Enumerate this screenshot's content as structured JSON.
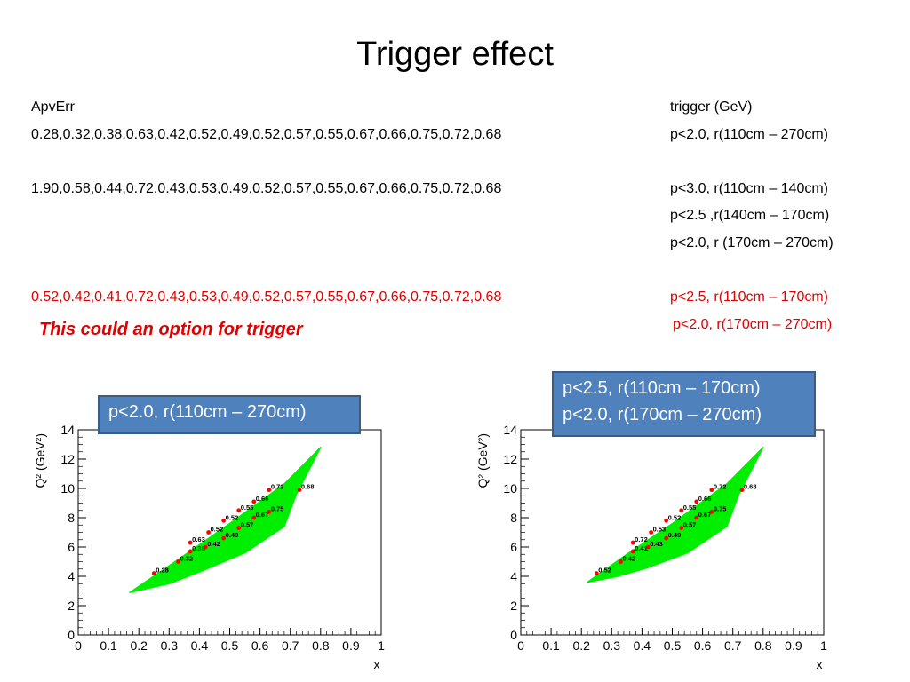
{
  "slide": {
    "title": "Trigger effect",
    "header_left": "ApvErr",
    "header_right": "trigger (GeV)",
    "rows": [
      {
        "values": "0.28,0.32,0.38,0.63,0.42,0.52,0.49,0.52,0.57,0.55,0.67,0.66,0.75,0.72,0.68",
        "triggers": [
          "p<2.0, r(110cm – 270cm)"
        ],
        "color": "#000000"
      },
      {
        "values": "1.90,0.58,0.44,0.72,0.43,0.53,0.49,0.52,0.57,0.55,0.67,0.66,0.75,0.72,0.68",
        "triggers": [
          "p<3.0, r(110cm – 140cm)",
          "p<2.5 ,r(140cm – 170cm)",
          "p<2.0, r (170cm – 270cm)"
        ],
        "color": "#000000"
      },
      {
        "values": "0.52,0.42,0.41,0.72,0.43,0.53,0.49,0.52,0.57,0.55,0.67,0.66,0.75,0.72,0.68",
        "triggers": [
          "p<2.5, r(110cm – 170cm)",
          "p<2.0, r(170cm – 270cm)"
        ],
        "color": "#e00000"
      }
    ],
    "note": "This could an option for trigger",
    "callout_left": [
      "p<2.0, r(110cm – 270cm)"
    ],
    "callout_right": [
      "p<2.5, r(110cm – 170cm)",
      "p<2.0, r(170cm – 270cm)"
    ],
    "colors": {
      "accent_red": "#e00000",
      "callout_fill": "#4f81bd",
      "band_green": "#00ee00",
      "point_red": "#ff0000"
    }
  },
  "chart_data": [
    {
      "type": "scatter",
      "title": "",
      "xlabel": "x",
      "ylabel": "Q² (GeV²)",
      "xlim": [
        0,
        1
      ],
      "ylim": [
        0,
        14
      ],
      "xticks": [
        "0",
        "0.1",
        "0.2",
        "0.3",
        "0.4",
        "0.5",
        "0.6",
        "0.7",
        "0.8",
        "0.9",
        "1"
      ],
      "yticks": [
        "0",
        "2",
        "4",
        "6",
        "8",
        "10",
        "12",
        "14"
      ],
      "band": [
        [
          0.17,
          2.9
        ],
        [
          0.32,
          5.0
        ],
        [
          0.5,
          7.6
        ],
        [
          0.68,
          10.3
        ],
        [
          0.8,
          12.8
        ],
        [
          0.72,
          9.6
        ],
        [
          0.68,
          7.4
        ],
        [
          0.55,
          5.6
        ],
        [
          0.4,
          4.3
        ],
        [
          0.3,
          3.5
        ]
      ],
      "points": [
        {
          "x": 0.25,
          "y": 4.2,
          "label": "0.28"
        },
        {
          "x": 0.33,
          "y": 5.0,
          "label": "0.32"
        },
        {
          "x": 0.37,
          "y": 5.7,
          "label": "0.38"
        },
        {
          "x": 0.37,
          "y": 6.3,
          "label": "0.63"
        },
        {
          "x": 0.42,
          "y": 6.0,
          "label": "0.42"
        },
        {
          "x": 0.43,
          "y": 7.0,
          "label": "0.52"
        },
        {
          "x": 0.48,
          "y": 6.6,
          "label": "0.49"
        },
        {
          "x": 0.48,
          "y": 7.8,
          "label": "0.52"
        },
        {
          "x": 0.53,
          "y": 7.3,
          "label": "0.57"
        },
        {
          "x": 0.53,
          "y": 8.5,
          "label": "0.55"
        },
        {
          "x": 0.58,
          "y": 8.0,
          "label": "0.67"
        },
        {
          "x": 0.58,
          "y": 9.1,
          "label": "0.66"
        },
        {
          "x": 0.63,
          "y": 8.4,
          "label": "0.75"
        },
        {
          "x": 0.63,
          "y": 9.9,
          "label": "0.72"
        },
        {
          "x": 0.73,
          "y": 9.9,
          "label": "0.68"
        }
      ]
    },
    {
      "type": "scatter",
      "title": "",
      "xlabel": "x",
      "ylabel": "Q² (GeV²)",
      "xlim": [
        0,
        1
      ],
      "ylim": [
        0,
        14
      ],
      "xticks": [
        "0",
        "0.1",
        "0.2",
        "0.3",
        "0.4",
        "0.5",
        "0.6",
        "0.7",
        "0.8",
        "0.9",
        "1"
      ],
      "yticks": [
        "0",
        "2",
        "4",
        "6",
        "8",
        "10",
        "12",
        "14"
      ],
      "band": [
        [
          0.22,
          3.6
        ],
        [
          0.35,
          5.5
        ],
        [
          0.5,
          7.6
        ],
        [
          0.68,
          10.3
        ],
        [
          0.8,
          12.8
        ],
        [
          0.72,
          9.6
        ],
        [
          0.68,
          7.4
        ],
        [
          0.55,
          5.6
        ],
        [
          0.42,
          4.6
        ],
        [
          0.32,
          4.0
        ]
      ],
      "points": [
        {
          "x": 0.25,
          "y": 4.2,
          "label": "0.52"
        },
        {
          "x": 0.33,
          "y": 5.0,
          "label": "0.42"
        },
        {
          "x": 0.37,
          "y": 5.7,
          "label": "0.41"
        },
        {
          "x": 0.37,
          "y": 6.3,
          "label": "0.72"
        },
        {
          "x": 0.42,
          "y": 6.0,
          "label": "0.43"
        },
        {
          "x": 0.43,
          "y": 7.0,
          "label": "0.53"
        },
        {
          "x": 0.48,
          "y": 6.6,
          "label": "0.49"
        },
        {
          "x": 0.48,
          "y": 7.8,
          "label": "0.52"
        },
        {
          "x": 0.53,
          "y": 7.3,
          "label": "0.57"
        },
        {
          "x": 0.53,
          "y": 8.5,
          "label": "0.55"
        },
        {
          "x": 0.58,
          "y": 8.0,
          "label": "0.67"
        },
        {
          "x": 0.58,
          "y": 9.1,
          "label": "0.66"
        },
        {
          "x": 0.63,
          "y": 8.4,
          "label": "0.75"
        },
        {
          "x": 0.63,
          "y": 9.9,
          "label": "0.72"
        },
        {
          "x": 0.73,
          "y": 9.9,
          "label": "0.68"
        }
      ]
    }
  ]
}
